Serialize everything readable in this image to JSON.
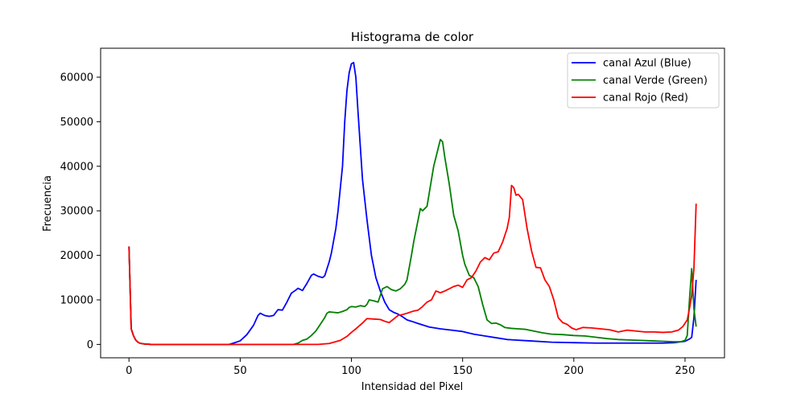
{
  "chart_data": {
    "type": "line",
    "title": "Histograma de color",
    "xlabel": "Intensidad del Pixel",
    "ylabel": "Frecuencia",
    "xlim": [
      -12.75,
      267.75
    ],
    "ylim": [
      -3000,
      66500
    ],
    "xticks": [
      0,
      50,
      100,
      150,
      200,
      250
    ],
    "yticks": [
      0,
      10000,
      20000,
      30000,
      40000,
      50000,
      60000
    ],
    "grid": false,
    "legend_position": "top-right",
    "series": [
      {
        "name": "canal Azul (Blue)",
        "color": "#0000ff",
        "points": [
          [
            0,
            22000
          ],
          [
            1,
            3500
          ],
          [
            2,
            2000
          ],
          [
            3,
            1000
          ],
          [
            4,
            500
          ],
          [
            5,
            250
          ],
          [
            7,
            100
          ],
          [
            10,
            0
          ],
          [
            45,
            0
          ],
          [
            47,
            300
          ],
          [
            50,
            800
          ],
          [
            53,
            2200
          ],
          [
            56,
            4300
          ],
          [
            58,
            6500
          ],
          [
            59,
            7000
          ],
          [
            61,
            6500
          ],
          [
            63,
            6300
          ],
          [
            65,
            6500
          ],
          [
            67,
            7800
          ],
          [
            69,
            7700
          ],
          [
            71,
            9500
          ],
          [
            73,
            11500
          ],
          [
            75,
            12200
          ],
          [
            76,
            12600
          ],
          [
            78,
            12100
          ],
          [
            80,
            13700
          ],
          [
            82,
            15500
          ],
          [
            83,
            15800
          ],
          [
            85,
            15300
          ],
          [
            87,
            15000
          ],
          [
            88,
            15400
          ],
          [
            90,
            18500
          ],
          [
            91,
            20500
          ],
          [
            93,
            26000
          ],
          [
            94,
            30000
          ],
          [
            96,
            40000
          ],
          [
            97,
            50000
          ],
          [
            98,
            57000
          ],
          [
            99,
            61000
          ],
          [
            100,
            63000
          ],
          [
            101,
            63300
          ],
          [
            102,
            60000
          ],
          [
            103,
            52000
          ],
          [
            105,
            37000
          ],
          [
            107,
            28000
          ],
          [
            109,
            20000
          ],
          [
            111,
            15000
          ],
          [
            113,
            12000
          ],
          [
            115,
            9500
          ],
          [
            117,
            7800
          ],
          [
            119,
            7200
          ],
          [
            121,
            6800
          ],
          [
            123,
            6200
          ],
          [
            125,
            5500
          ],
          [
            127,
            5200
          ],
          [
            130,
            4700
          ],
          [
            135,
            3900
          ],
          [
            140,
            3500
          ],
          [
            145,
            3200
          ],
          [
            150,
            2900
          ],
          [
            155,
            2300
          ],
          [
            160,
            1900
          ],
          [
            165,
            1500
          ],
          [
            170,
            1100
          ],
          [
            180,
            800
          ],
          [
            190,
            500
          ],
          [
            200,
            400
          ],
          [
            210,
            300
          ],
          [
            220,
            300
          ],
          [
            230,
            300
          ],
          [
            240,
            300
          ],
          [
            245,
            400
          ],
          [
            250,
            700
          ],
          [
            252,
            1200
          ],
          [
            253,
            1600
          ],
          [
            254,
            6000
          ],
          [
            255,
            14500
          ]
        ]
      },
      {
        "name": "canal Verde (Green)",
        "color": "#008000",
        "points": [
          [
            0,
            22000
          ],
          [
            1,
            3500
          ],
          [
            2,
            2000
          ],
          [
            3,
            1000
          ],
          [
            4,
            500
          ],
          [
            5,
            250
          ],
          [
            7,
            100
          ],
          [
            10,
            0
          ],
          [
            74,
            0
          ],
          [
            76,
            300
          ],
          [
            78,
            900
          ],
          [
            80,
            1200
          ],
          [
            82,
            2000
          ],
          [
            84,
            3000
          ],
          [
            86,
            4500
          ],
          [
            88,
            6000
          ],
          [
            89,
            7000
          ],
          [
            90,
            7300
          ],
          [
            92,
            7200
          ],
          [
            94,
            7100
          ],
          [
            96,
            7400
          ],
          [
            98,
            7800
          ],
          [
            99,
            8300
          ],
          [
            100,
            8500
          ],
          [
            102,
            8400
          ],
          [
            104,
            8700
          ],
          [
            106,
            8500
          ],
          [
            107,
            9000
          ],
          [
            108,
            10000
          ],
          [
            110,
            9800
          ],
          [
            112,
            9500
          ],
          [
            113,
            11000
          ],
          [
            114,
            12500
          ],
          [
            116,
            13000
          ],
          [
            118,
            12300
          ],
          [
            120,
            12000
          ],
          [
            122,
            12500
          ],
          [
            124,
            13500
          ],
          [
            125,
            14500
          ],
          [
            127,
            20000
          ],
          [
            128,
            23000
          ],
          [
            130,
            28000
          ],
          [
            131,
            30500
          ],
          [
            132,
            30000
          ],
          [
            134,
            31000
          ],
          [
            135,
            34000
          ],
          [
            136,
            37000
          ],
          [
            137,
            40000
          ],
          [
            138,
            42000
          ],
          [
            139,
            44000
          ],
          [
            140,
            46000
          ],
          [
            141,
            45500
          ],
          [
            142,
            42000
          ],
          [
            144,
            36000
          ],
          [
            146,
            29000
          ],
          [
            148,
            25500
          ],
          [
            150,
            20000
          ],
          [
            151,
            18000
          ],
          [
            153,
            15500
          ],
          [
            155,
            15000
          ],
          [
            157,
            13000
          ],
          [
            159,
            9000
          ],
          [
            161,
            5500
          ],
          [
            163,
            4700
          ],
          [
            165,
            4800
          ],
          [
            167,
            4400
          ],
          [
            169,
            3800
          ],
          [
            172,
            3600
          ],
          [
            175,
            3500
          ],
          [
            178,
            3400
          ],
          [
            182,
            3000
          ],
          [
            186,
            2600
          ],
          [
            190,
            2300
          ],
          [
            195,
            2200
          ],
          [
            200,
            2000
          ],
          [
            205,
            1900
          ],
          [
            210,
            1600
          ],
          [
            215,
            1300
          ],
          [
            220,
            1100
          ],
          [
            225,
            1000
          ],
          [
            230,
            900
          ],
          [
            235,
            800
          ],
          [
            240,
            700
          ],
          [
            245,
            600
          ],
          [
            248,
            600
          ],
          [
            250,
            900
          ],
          [
            251,
            2000
          ],
          [
            252,
            10000
          ],
          [
            253,
            17000
          ],
          [
            254,
            8000
          ],
          [
            255,
            4000
          ]
        ]
      },
      {
        "name": "canal Rojo (Red)",
        "color": "#ff0000",
        "points": [
          [
            0,
            22000
          ],
          [
            1,
            3500
          ],
          [
            2,
            2000
          ],
          [
            3,
            1000
          ],
          [
            4,
            500
          ],
          [
            5,
            250
          ],
          [
            7,
            100
          ],
          [
            10,
            0
          ],
          [
            85,
            0
          ],
          [
            90,
            200
          ],
          [
            95,
            900
          ],
          [
            98,
            1800
          ],
          [
            100,
            2700
          ],
          [
            102,
            3500
          ],
          [
            105,
            4800
          ],
          [
            107,
            5800
          ],
          [
            110,
            5700
          ],
          [
            113,
            5600
          ],
          [
            115,
            5200
          ],
          [
            117,
            4900
          ],
          [
            119,
            5700
          ],
          [
            121,
            6500
          ],
          [
            123,
            6700
          ],
          [
            125,
            7000
          ],
          [
            128,
            7500
          ],
          [
            130,
            7700
          ],
          [
            132,
            8500
          ],
          [
            134,
            9500
          ],
          [
            136,
            10000
          ],
          [
            138,
            12000
          ],
          [
            140,
            11600
          ],
          [
            142,
            12000
          ],
          [
            144,
            12500
          ],
          [
            146,
            13000
          ],
          [
            148,
            13300
          ],
          [
            150,
            12800
          ],
          [
            152,
            14500
          ],
          [
            154,
            15000
          ],
          [
            156,
            16500
          ],
          [
            158,
            18500
          ],
          [
            160,
            19500
          ],
          [
            162,
            19000
          ],
          [
            164,
            20500
          ],
          [
            166,
            20800
          ],
          [
            168,
            23000
          ],
          [
            170,
            26000
          ],
          [
            171,
            28500
          ],
          [
            172,
            35700
          ],
          [
            173,
            35200
          ],
          [
            174,
            33500
          ],
          [
            175,
            33700
          ],
          [
            177,
            32500
          ],
          [
            179,
            26000
          ],
          [
            181,
            21000
          ],
          [
            183,
            17300
          ],
          [
            185,
            17200
          ],
          [
            187,
            14500
          ],
          [
            189,
            13000
          ],
          [
            191,
            10000
          ],
          [
            193,
            6000
          ],
          [
            195,
            4900
          ],
          [
            197,
            4500
          ],
          [
            199,
            3700
          ],
          [
            201,
            3300
          ],
          [
            204,
            3800
          ],
          [
            208,
            3700
          ],
          [
            212,
            3500
          ],
          [
            216,
            3300
          ],
          [
            220,
            2800
          ],
          [
            224,
            3200
          ],
          [
            228,
            3000
          ],
          [
            232,
            2800
          ],
          [
            236,
            2800
          ],
          [
            240,
            2700
          ],
          [
            244,
            2800
          ],
          [
            247,
            3200
          ],
          [
            249,
            4000
          ],
          [
            251,
            5500
          ],
          [
            252,
            8000
          ],
          [
            253,
            11000
          ],
          [
            254,
            17000
          ],
          [
            255,
            31600
          ]
        ]
      }
    ]
  }
}
